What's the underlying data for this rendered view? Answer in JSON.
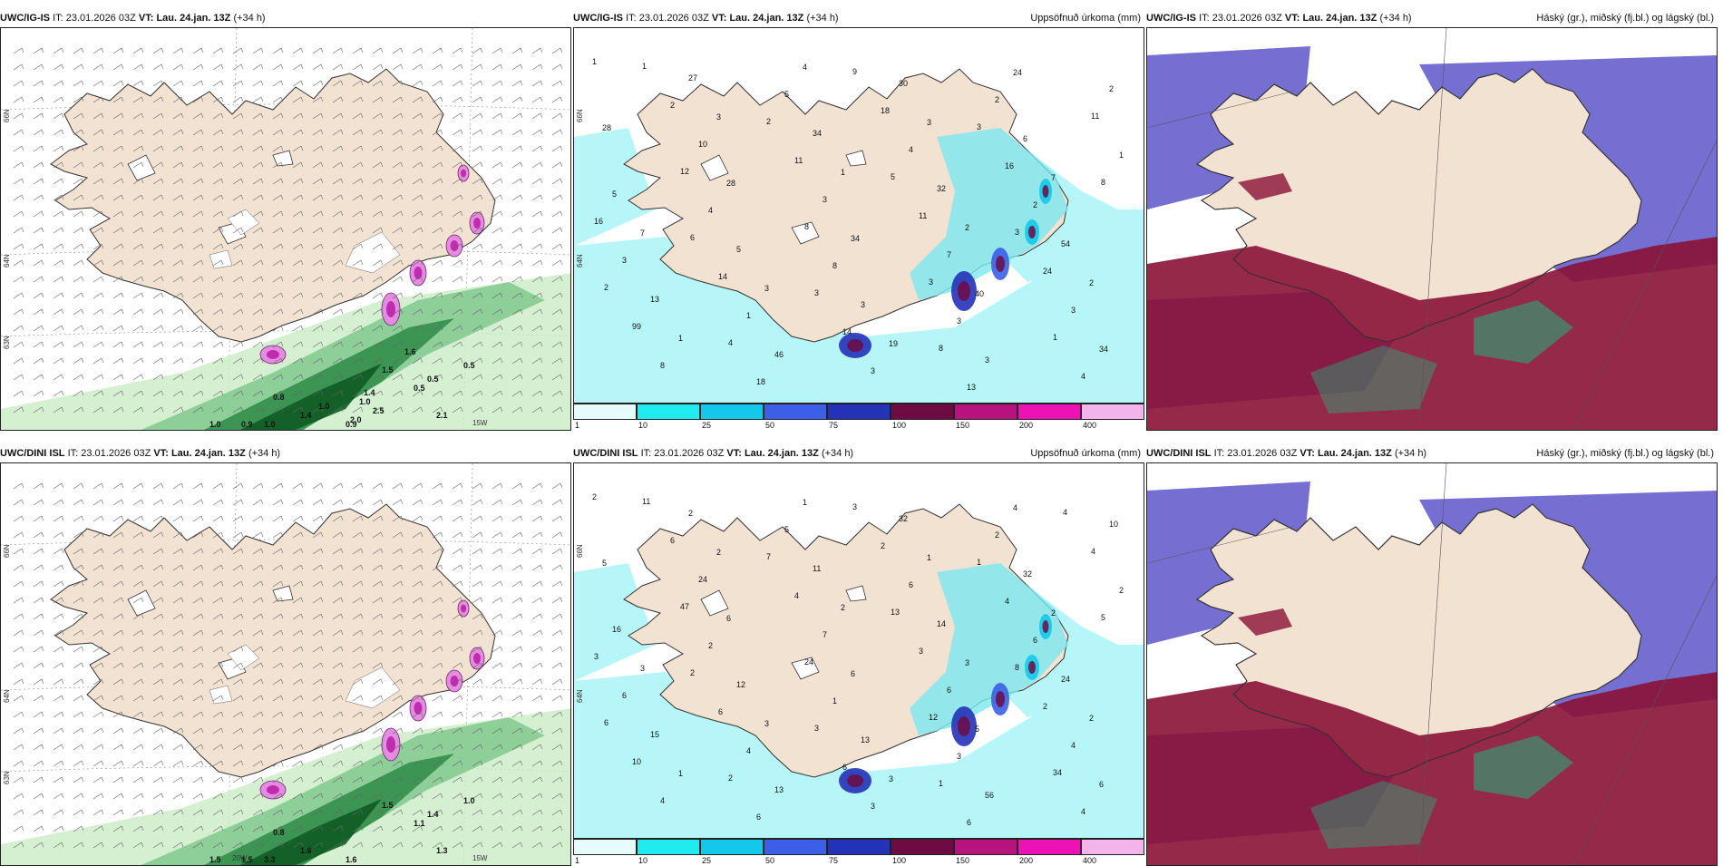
{
  "panels": [
    {
      "model": "UWC/IG-IS",
      "it_label": "IT:",
      "it_value": "23.01.2026 03Z",
      "vt_label": "VT:",
      "vt_value": "Lau. 24.jan. 13Z",
      "lead": "(+34 h)",
      "title_right": "",
      "type": "wind",
      "lat_labels": [
        "66N",
        "64N",
        "63N"
      ],
      "lon_labels": [
        "15W"
      ],
      "values": [
        "0.8",
        "0.5",
        "0.5",
        "0.5",
        "1.0",
        "1.0",
        "1.4",
        "2.1",
        "1.5",
        "0.9",
        "0.9",
        "1.0",
        "1.0",
        "2.0",
        "2.5",
        "1.6",
        "1.4"
      ]
    },
    {
      "model": "UWC/IG-IS",
      "it_label": "IT:",
      "it_value": "23.01.2026 03Z",
      "vt_label": "VT:",
      "vt_value": "Lau. 24.jan. 13Z",
      "lead": "(+34 h)",
      "title_right": "Uppsöfnuð úrkoma (mm)",
      "type": "precip",
      "lat_labels": [
        "66N",
        "64N"
      ],
      "lon_labels": [],
      "values": [
        "1",
        "3",
        "1",
        "2",
        "2",
        "1",
        "4",
        "3",
        "7",
        "7",
        "3",
        "19",
        "24",
        "28",
        "28",
        "34",
        "40",
        "34",
        "27",
        "34",
        "32",
        "54",
        "13",
        "46",
        "30",
        "6",
        "5",
        "5",
        "3",
        "3",
        "2",
        "10",
        "3",
        "7",
        "3",
        "8",
        "5",
        "4",
        "2",
        "3",
        "1",
        "3",
        "2",
        "1",
        "4",
        "8",
        "3",
        "4",
        "2",
        "11",
        "11",
        "24",
        "99",
        "18",
        "18",
        "16",
        "16",
        "14",
        "14",
        "13",
        "11",
        "12",
        "8",
        "3",
        "1",
        "1",
        "2",
        "5",
        "3",
        "2",
        "4",
        "9",
        "3",
        "8",
        "6",
        "3",
        "8"
      ]
    },
    {
      "model": "UWC/IG-IS",
      "it_label": "IT:",
      "it_value": "23.01.2026 03Z",
      "vt_label": "VT:",
      "vt_value": "Lau. 24.jan. 13Z",
      "lead": "(+34 h)",
      "title_right": "Háský (gr.), miðský (fj.bl.) og lágský (bl.)",
      "type": "cloud",
      "lat_labels": [],
      "lon_labels": [],
      "values": []
    },
    {
      "model": "UWC/DINI ISL",
      "it_label": "IT:",
      "it_value": "23.01.2026 03Z",
      "vt_label": "VT:",
      "vt_value": "Lau. 24.jan. 13Z",
      "lead": "(+34 h)",
      "title_right": "",
      "type": "wind",
      "lat_labels": [
        "66N",
        "64N",
        "63N"
      ],
      "lon_labels": [
        "20W",
        "15W"
      ],
      "values": [
        "0.8",
        "1.4",
        "1.1",
        "1.0",
        "3.3",
        "1.5",
        "1.6",
        "1.3",
        "1.5",
        "1.6",
        "1.5"
      ]
    },
    {
      "model": "UWC/DINI ISL",
      "it_label": "IT:",
      "it_value": "23.01.2026 03Z",
      "vt_label": "VT:",
      "vt_value": "Lau. 24.jan. 13Z",
      "lead": "(+34 h)",
      "title_right": "Uppsöfnuð úrkoma (mm)",
      "type": "precip",
      "lat_labels": [
        "66N",
        "64N"
      ],
      "lon_labels": [],
      "values": [
        "2",
        "2",
        "2",
        "3",
        "2",
        "1",
        "1",
        "1",
        "2",
        "3",
        "3",
        "3",
        "4",
        "5",
        "6",
        "6",
        "5",
        "6",
        "2",
        "11",
        "14",
        "24",
        "15",
        "13",
        "32",
        "32",
        "16",
        "12",
        "13",
        "56",
        "10",
        "24",
        "7",
        "6",
        "4",
        "4",
        "5",
        "6",
        "6",
        "6",
        "4",
        "3",
        "2",
        "2",
        "2",
        "1",
        "3",
        "4",
        "6",
        "4",
        "3",
        "2",
        "10",
        "6",
        "2",
        "4",
        "3",
        "6",
        "6",
        "6",
        "4",
        "47",
        "24",
        "12",
        "34",
        "11",
        "7",
        "13",
        "8",
        "6",
        "2",
        "3",
        "1",
        "5",
        "2",
        "3",
        "1",
        "4"
      ]
    },
    {
      "model": "UWC/DINI ISL",
      "it_label": "IT:",
      "it_value": "23.01.2026 03Z",
      "vt_label": "VT:",
      "vt_value": "Lau. 24.jan. 13Z",
      "lead": "(+34 h)",
      "title_right": "Háský (gr.), miðský (fj.bl.) og lágský (bl.)",
      "type": "cloud",
      "lat_labels": [],
      "lon_labels": [],
      "values": []
    }
  ],
  "colorbar": {
    "labels": [
      "1",
      "10",
      "25",
      "50",
      "75",
      "100",
      "150",
      "200",
      "400"
    ],
    "colors": [
      "#e8fbfc",
      "#20ecf0",
      "#14c8ec",
      "#3c5ee8",
      "#2432b8",
      "#6e0a44",
      "#b8127e",
      "#ec12b6",
      "#f2b4ea"
    ]
  },
  "colors": {
    "land": "#f2e2d2",
    "sea_precip": "#b6f6f8",
    "sea_wind": "#ffffff",
    "wind_green_light": "#c9ecc4",
    "wind_green_dark": "#0e5a24",
    "high_cloud": "#8a1236",
    "mid_cloud": "#5d56c9",
    "low_cloud": "#2aa87a"
  }
}
